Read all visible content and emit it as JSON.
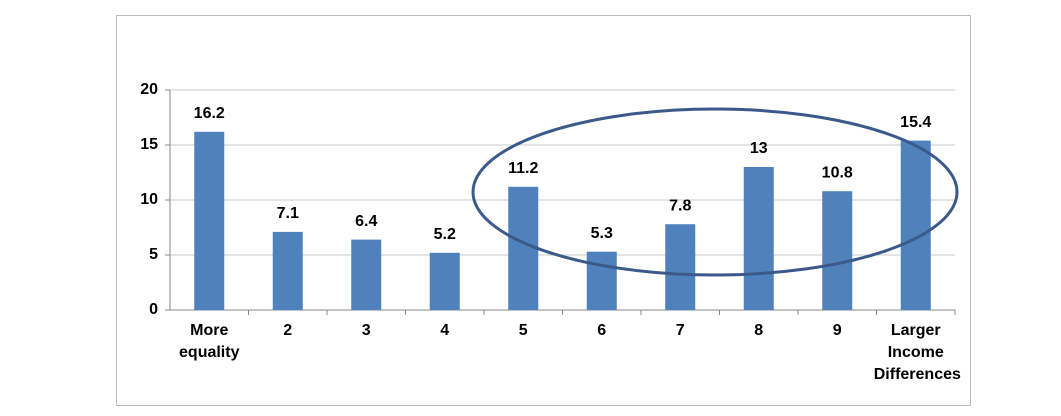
{
  "chart_data": {
    "type": "bar",
    "categories": [
      "More equality",
      "2",
      "3",
      "4",
      "5",
      "6",
      "7",
      "8",
      "9",
      "Larger Income Differences"
    ],
    "values": [
      16.2,
      7.1,
      6.4,
      5.2,
      11.2,
      5.3,
      7.8,
      13,
      10.8,
      15.4
    ],
    "color": "#4f81bd",
    "ylim": [
      0,
      20
    ],
    "yticks": [
      0,
      5,
      10,
      15,
      20
    ],
    "grid": true
  }
}
